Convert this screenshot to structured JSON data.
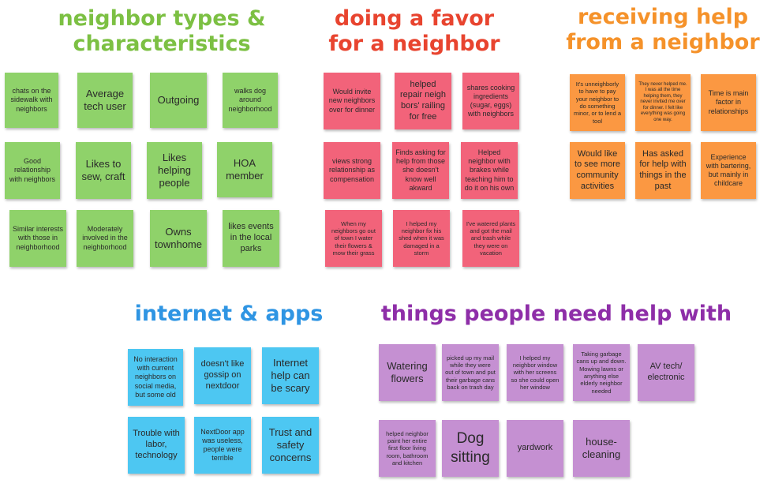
{
  "sections": {
    "neighbor_types": {
      "title": "neighbor types &\ncharacteristics",
      "notes": [
        "chats on the sidewalk with neighbors",
        "Average tech user",
        "Outgoing",
        "walks dog around neighborhood",
        "Good relationship with neighbors",
        "Likes to sew, craft",
        "Likes helping people",
        "HOA member",
        "Similar interests with those in neighborhood",
        "Moderately involved in the neighborhood",
        "Owns townhome",
        "likes events in the local parks"
      ]
    },
    "doing_favor": {
      "title": "doing a favor\nfor a neighbor",
      "notes": [
        "Would invite new neighbors over for dinner",
        "helped repair neigh bors' railing for free",
        "shares cooking ingredients (sugar, eggs) with neighbors",
        "views strong relationship as compensation",
        "Finds asking for help from those she doesn't know well akward",
        "Helped neighbor with brakes while teaching him to do it on his own",
        "When my neighbors go out of town I water their flowers & mow their grass",
        "I helped my neighbor fix his shed when it was damaged in a storm",
        "I've watered plants and got the mail and trash while they were on vacation"
      ]
    },
    "receiving_help": {
      "title": "receiving help\nfrom a neighbor",
      "notes": [
        "It's unneighborly to have to pay your neighbor to do something minor, or to lend a tool",
        "They never helped me. I was all the time helping them, they never invited me over for dinner. I felt like everything was going one way.",
        "Time is main factor in relationships",
        "Would like to see more community activities",
        "Has asked for help with things in the past",
        "Experience with bartering, but mainly in childcare"
      ]
    },
    "internet_apps": {
      "title": "internet & apps",
      "notes": [
        "No interaction with current neighbors on social media, but some old",
        "doesn't like gossip on nextdoor",
        "Internet help can be scary",
        "Trouble with labor, technology",
        "NextDoor app was useless, people were terrible",
        "Trust and safety concerns"
      ]
    },
    "help_needed": {
      "title": "things people need help with",
      "notes": [
        "Watering flowers",
        "picked up my mail while they were out of town and put their garbage cans back on trash day",
        "I helped my neighbor window with her screens so she could open her window",
        "Taking garbage cans up and down. Mowing lawns or anything else elderly neighbor needed",
        "AV tech/ electronic",
        "helped neighbor paint her entire first floor living room, bathroom and kitchen",
        "Dog sitting",
        "yardwork",
        "house-cleaning"
      ]
    }
  },
  "colors": {
    "green": "#8fd26a",
    "red": "#f2637a",
    "orange": "#fb9842",
    "blue": "#4dc7f2",
    "purple": "#c590d2"
  }
}
